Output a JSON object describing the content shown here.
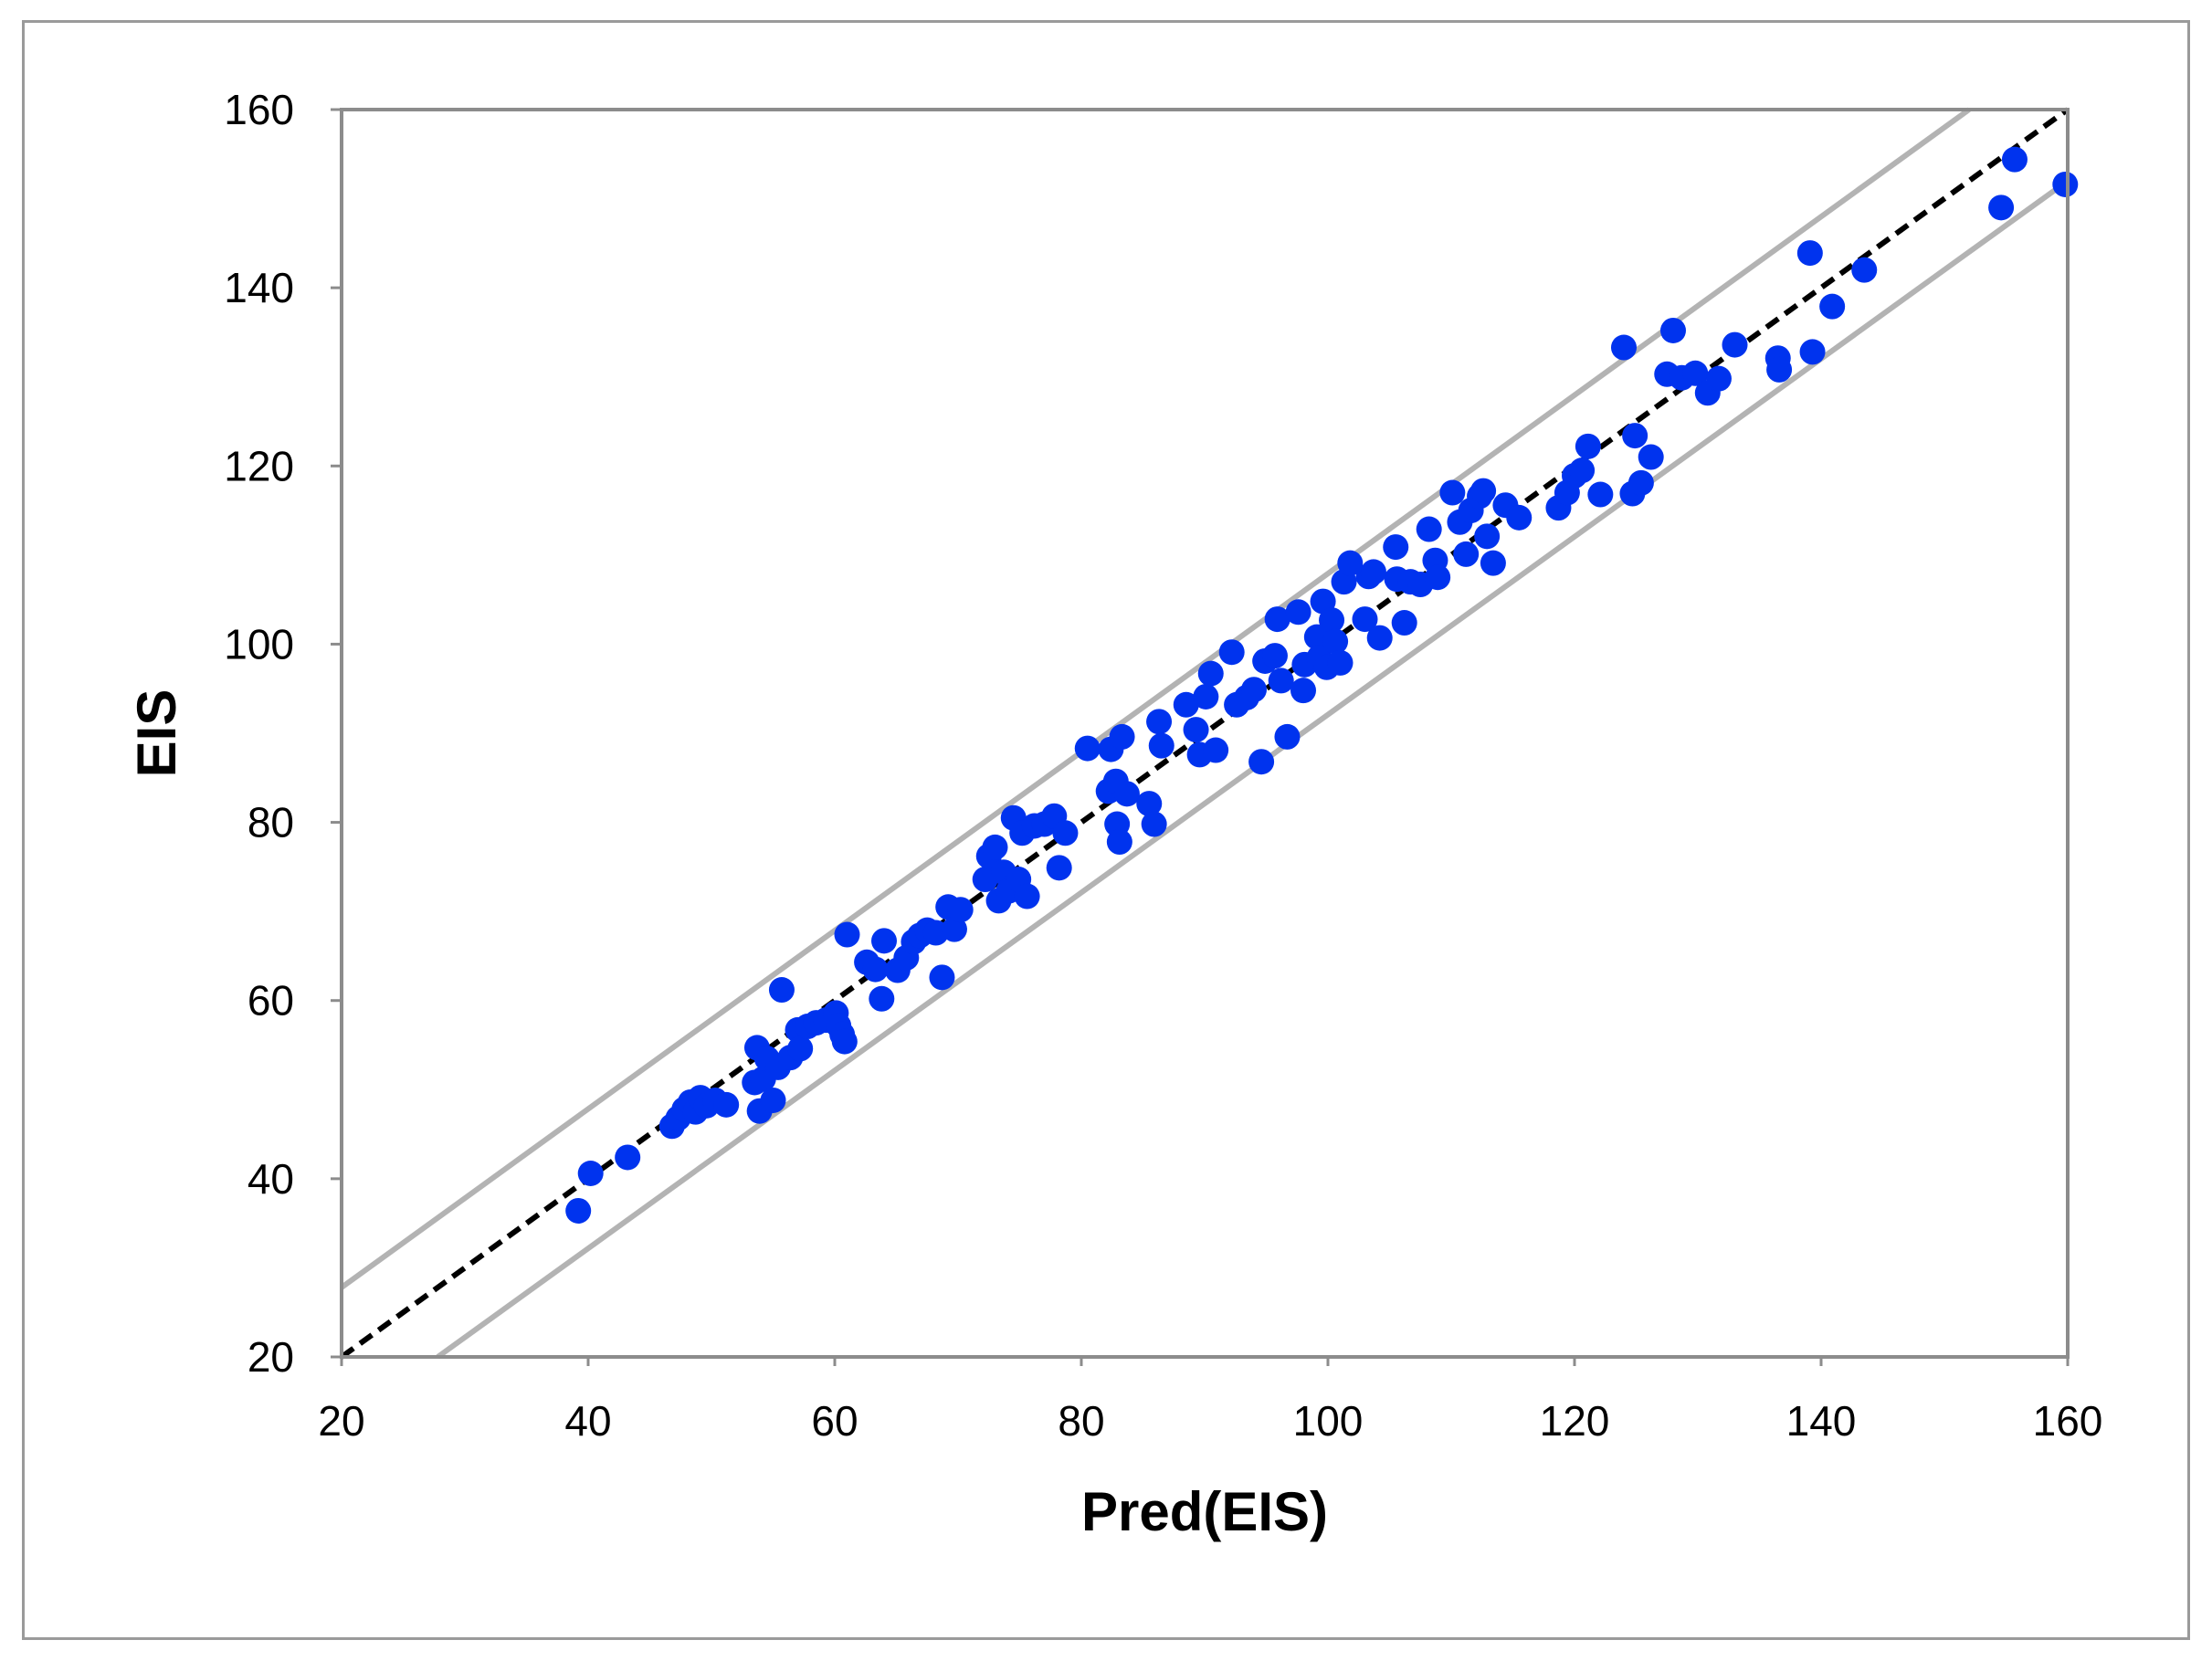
{
  "chart_data": {
    "type": "scatter",
    "xlabel": "Pred(EIS)",
    "ylabel": "EIS",
    "xlim": [
      20,
      160
    ],
    "ylim": [
      20,
      160
    ],
    "x_ticks": [
      "20",
      "40",
      "60",
      "80",
      "100",
      "120",
      "140",
      "160"
    ],
    "y_ticks": [
      "20",
      "40",
      "60",
      "80",
      "100",
      "120",
      "140",
      "160"
    ],
    "grid": false,
    "legend": "none",
    "colors": {
      "points": "#0033ee",
      "identity_line": "#000000",
      "band_lines": "#b3b3b3",
      "plot_border": "#8c8c8c"
    },
    "reference_lines": [
      {
        "role": "identity",
        "style": "dashed",
        "points": [
          [
            20,
            20
          ],
          [
            160,
            160
          ]
        ]
      },
      {
        "role": "upper-band",
        "style": "solid",
        "points": [
          [
            20,
            27.8
          ],
          [
            152,
            160
          ]
        ]
      },
      {
        "role": "lower-band",
        "style": "solid",
        "points": [
          [
            27.8,
            20
          ],
          [
            160,
            152
          ]
        ]
      }
    ],
    "series": [
      {
        "points": [
          [
            39.2,
            36.4
          ],
          [
            40.2,
            40.6
          ],
          [
            43.2,
            42.4
          ],
          [
            46.8,
            45.9
          ],
          [
            47.3,
            46.8
          ],
          [
            47.8,
            47.8
          ],
          [
            48.3,
            48.6
          ],
          [
            48.7,
            47.5
          ],
          [
            49.1,
            49.1
          ],
          [
            49.6,
            48.2
          ],
          [
            50.3,
            48.8
          ],
          [
            51.2,
            48.3
          ],
          [
            53.5,
            50.8
          ],
          [
            53.7,
            54.7
          ],
          [
            53.9,
            47.6
          ],
          [
            54.2,
            51.2
          ],
          [
            54.5,
            53.5
          ],
          [
            55.0,
            48.8
          ],
          [
            55.4,
            52.5
          ],
          [
            55.7,
            61.2
          ],
          [
            56.4,
            53.6
          ],
          [
            57.0,
            56.7
          ],
          [
            57.2,
            54.6
          ],
          [
            57.8,
            57.1
          ],
          [
            58.5,
            57.5
          ],
          [
            59.3,
            57.8
          ],
          [
            60.1,
            58.6
          ],
          [
            60.3,
            57.2
          ],
          [
            60.6,
            56.2
          ],
          [
            60.8,
            55.4
          ],
          [
            61.0,
            67.4
          ],
          [
            62.6,
            64.3
          ],
          [
            63.3,
            63.5
          ],
          [
            63.8,
            60.2
          ],
          [
            64.0,
            66.7
          ],
          [
            65.1,
            63.4
          ],
          [
            65.8,
            64.8
          ],
          [
            66.4,
            66.6
          ],
          [
            66.9,
            67.3
          ],
          [
            67.5,
            67.9
          ],
          [
            68.2,
            67.6
          ],
          [
            68.7,
            62.6
          ],
          [
            69.2,
            70.5
          ],
          [
            69.7,
            68.0
          ],
          [
            70.2,
            70.2
          ],
          [
            72.2,
            73.6
          ],
          [
            72.5,
            76.2
          ],
          [
            73.0,
            77.2
          ],
          [
            73.3,
            71.2
          ],
          [
            73.7,
            74.4
          ],
          [
            74.1,
            72.3
          ],
          [
            74.5,
            80.5
          ],
          [
            74.9,
            73.6
          ],
          [
            75.2,
            78.8
          ],
          [
            75.6,
            71.7
          ],
          [
            76.2,
            79.6
          ],
          [
            77.0,
            79.8
          ],
          [
            77.8,
            80.7
          ],
          [
            78.2,
            74.9
          ],
          [
            78.7,
            78.8
          ],
          [
            80.5,
            88.3
          ],
          [
            82.2,
            83.5
          ],
          [
            82.4,
            88.2
          ],
          [
            82.8,
            84.6
          ],
          [
            82.9,
            79.8
          ],
          [
            83.1,
            77.8
          ],
          [
            83.3,
            89.6
          ],
          [
            83.7,
            83.2
          ],
          [
            85.5,
            82.1
          ],
          [
            85.9,
            79.8
          ],
          [
            86.3,
            91.3
          ],
          [
            86.5,
            88.6
          ],
          [
            88.5,
            93.2
          ],
          [
            89.3,
            90.4
          ],
          [
            89.6,
            87.6
          ],
          [
            90.1,
            94.1
          ],
          [
            90.5,
            96.7
          ],
          [
            90.9,
            88.1
          ],
          [
            92.2,
            99.1
          ],
          [
            92.6,
            93.2
          ],
          [
            93.4,
            94.0
          ],
          [
            94.0,
            94.9
          ],
          [
            94.6,
            86.8
          ],
          [
            94.9,
            98.1
          ],
          [
            95.7,
            98.7
          ],
          [
            95.9,
            102.8
          ],
          [
            96.2,
            95.9
          ],
          [
            96.7,
            89.6
          ],
          [
            97.6,
            103.6
          ],
          [
            98.0,
            94.8
          ],
          [
            98.1,
            97.7
          ],
          [
            99.1,
            100.8
          ],
          [
            99.3,
            98.5
          ],
          [
            99.6,
            104.8
          ],
          [
            99.9,
            97.4
          ],
          [
            100.3,
            102.7
          ],
          [
            100.6,
            100.3
          ],
          [
            101.0,
            97.9
          ],
          [
            101.3,
            107.0
          ],
          [
            101.8,
            109.1
          ],
          [
            103.0,
            102.8
          ],
          [
            103.3,
            107.6
          ],
          [
            103.7,
            108.1
          ],
          [
            104.2,
            100.7
          ],
          [
            105.5,
            110.9
          ],
          [
            105.6,
            107.3
          ],
          [
            106.2,
            102.4
          ],
          [
            106.7,
            107.0
          ],
          [
            107.5,
            106.7
          ],
          [
            108.2,
            112.9
          ],
          [
            108.7,
            109.4
          ],
          [
            108.9,
            107.5
          ],
          [
            110.1,
            117.0
          ],
          [
            110.7,
            113.7
          ],
          [
            111.2,
            110.1
          ],
          [
            111.6,
            115.0
          ],
          [
            112.3,
            116.6
          ],
          [
            112.6,
            117.2
          ],
          [
            112.9,
            112.1
          ],
          [
            113.4,
            109.1
          ],
          [
            114.4,
            115.6
          ],
          [
            115.5,
            114.2
          ],
          [
            118.7,
            115.3
          ],
          [
            119.4,
            117.0
          ],
          [
            120.0,
            118.9
          ],
          [
            120.6,
            119.5
          ],
          [
            121.1,
            122.2
          ],
          [
            122.1,
            116.8
          ],
          [
            124.0,
            133.3
          ],
          [
            124.7,
            116.9
          ],
          [
            124.9,
            123.4
          ],
          [
            125.4,
            118.1
          ],
          [
            126.2,
            121.0
          ],
          [
            127.5,
            130.3
          ],
          [
            128.0,
            135.2
          ],
          [
            128.7,
            129.9
          ],
          [
            129.8,
            130.4
          ],
          [
            130.8,
            128.2
          ],
          [
            131.7,
            129.8
          ],
          [
            133.0,
            133.6
          ],
          [
            136.5,
            132.1
          ],
          [
            136.6,
            130.8
          ],
          [
            139.1,
            143.9
          ],
          [
            139.3,
            132.8
          ],
          [
            140.9,
            137.9
          ],
          [
            143.5,
            142.0
          ],
          [
            154.6,
            149.0
          ],
          [
            155.7,
            154.4
          ],
          [
            159.8,
            151.6
          ]
        ]
      }
    ]
  }
}
